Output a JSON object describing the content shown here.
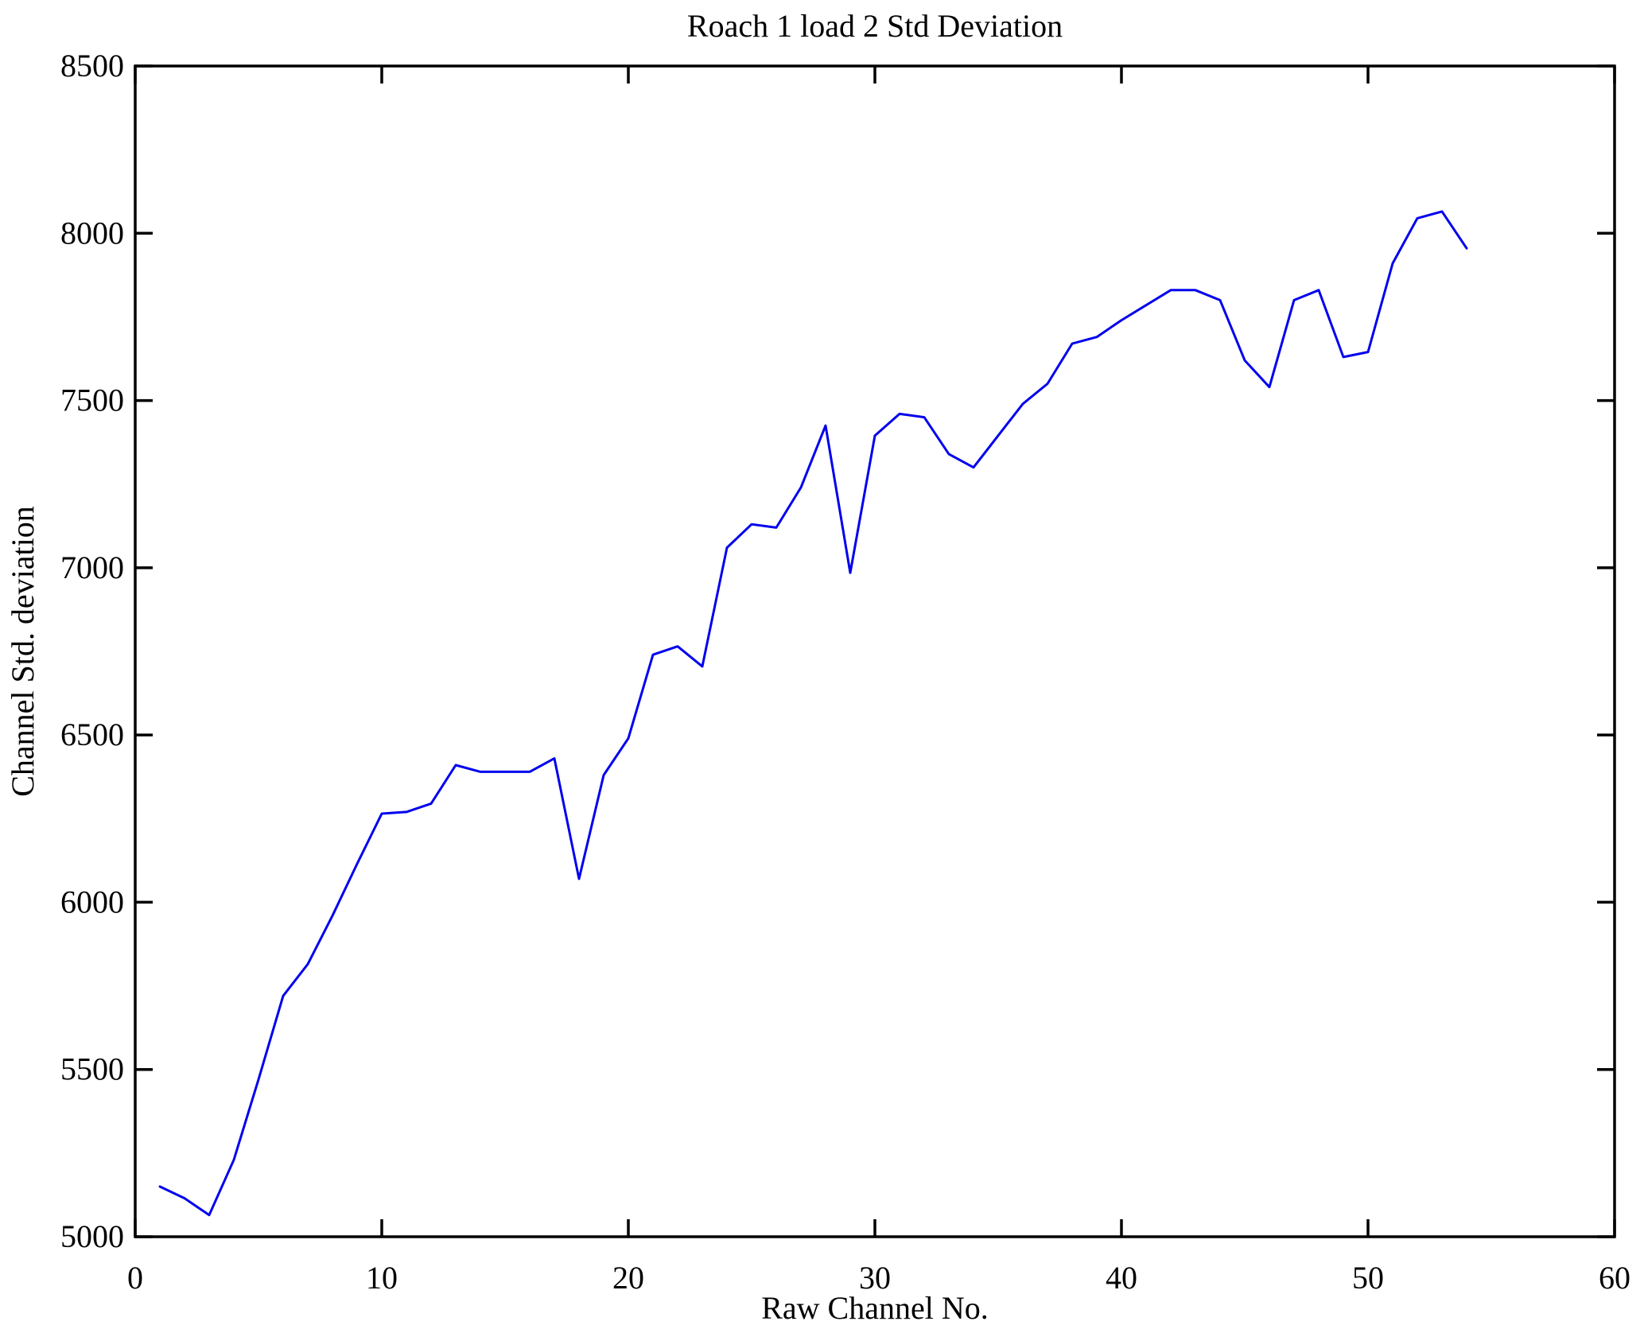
{
  "chart_data": {
    "type": "line",
    "title": "Roach 1 load 2 Std Deviation",
    "xlabel": "Raw Channel No.",
    "ylabel": "Channel Std. deviation",
    "xlim": [
      0,
      60
    ],
    "ylim": [
      5000,
      8500
    ],
    "x_ticks": [
      0,
      10,
      20,
      30,
      40,
      50,
      60
    ],
    "y_ticks": [
      5000,
      5500,
      6000,
      6500,
      7000,
      7500,
      8000,
      8500
    ],
    "grid": false,
    "legend": null,
    "line_color": "#0000ee",
    "frame_color": "#000000",
    "x": [
      1,
      2,
      3,
      4,
      5,
      6,
      7,
      8,
      9,
      10,
      11,
      12,
      13,
      14,
      15,
      16,
      17,
      18,
      19,
      20,
      21,
      22,
      23,
      24,
      25,
      26,
      27,
      28,
      29,
      30,
      31,
      32,
      33,
      34,
      35,
      36,
      37,
      38,
      39,
      40,
      41,
      42,
      43,
      44,
      45,
      46,
      47,
      48,
      49,
      50,
      51,
      52,
      53,
      54
    ],
    "y": [
      5150,
      5115,
      5065,
      5230,
      5470,
      5720,
      5815,
      5960,
      6115,
      6265,
      6270,
      6295,
      6410,
      6390,
      6390,
      6390,
      6430,
      6070,
      6380,
      6490,
      6740,
      6765,
      6705,
      7060,
      7130,
      7120,
      7240,
      7425,
      6985,
      7395,
      7460,
      7450,
      7340,
      7300,
      7395,
      7490,
      7550,
      7670,
      7690,
      7740,
      7785,
      7830,
      7830,
      7800,
      7620,
      7540,
      7800,
      7830,
      7630,
      7645,
      7910,
      8045,
      8065,
      7955
    ]
  }
}
